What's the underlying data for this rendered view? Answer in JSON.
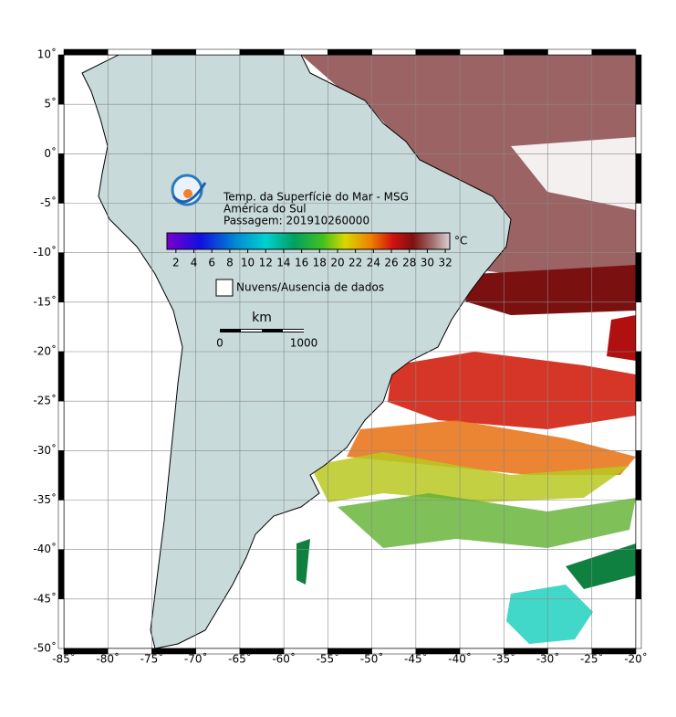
{
  "map": {
    "title": "Temp. da Superfície do Mar - MSG",
    "region": "América do Sul",
    "pass": "Passagem: 201910260000",
    "colorbar": {
      "unit": "°C",
      "lim": [
        1,
        32.5
      ],
      "ticks": [
        2,
        4,
        6,
        8,
        10,
        12,
        14,
        16,
        18,
        20,
        22,
        24,
        26,
        28,
        30,
        32
      ]
    },
    "legend": "Nuvens/Ausencia de dados",
    "scale": {
      "unit": "km",
      "start": "0",
      "end": "1000"
    },
    "lonlim": [
      -85,
      -20
    ],
    "latlim": [
      -50,
      10
    ],
    "lon_ticks": [
      {
        "value": -85,
        "label": "-85˚"
      },
      {
        "value": -80,
        "label": "-80˚"
      },
      {
        "value": -75,
        "label": "-75˚"
      },
      {
        "value": -70,
        "label": "-70˚"
      },
      {
        "value": -65,
        "label": "-65˚"
      },
      {
        "value": -60,
        "label": "-60˚"
      },
      {
        "value": -55,
        "label": "-55˚"
      },
      {
        "value": -50,
        "label": "-50˚"
      },
      {
        "value": -45,
        "label": "-45˚"
      },
      {
        "value": -40,
        "label": "-40˚"
      },
      {
        "value": -35,
        "label": "-35˚"
      },
      {
        "value": -30,
        "label": "-30˚"
      },
      {
        "value": -25,
        "label": "-25˚"
      },
      {
        "value": -20,
        "label": "-20˚"
      }
    ],
    "lat_ticks": [
      {
        "value": 10,
        "label": "10˚"
      },
      {
        "value": 5,
        "label": "5˚"
      },
      {
        "value": 0,
        "label": "0˚"
      },
      {
        "value": -5,
        "label": "-5˚"
      },
      {
        "value": -10,
        "label": "-10˚"
      },
      {
        "value": -15,
        "label": "-15˚"
      },
      {
        "value": -20,
        "label": "-20˚"
      },
      {
        "value": -25,
        "label": "-25˚"
      },
      {
        "value": -30,
        "label": "-30˚"
      },
      {
        "value": -35,
        "label": "-35˚"
      },
      {
        "value": -40,
        "label": "-40˚"
      },
      {
        "value": -45,
        "label": "-45˚"
      },
      {
        "value": -50,
        "label": "-50˚"
      }
    ]
  }
}
